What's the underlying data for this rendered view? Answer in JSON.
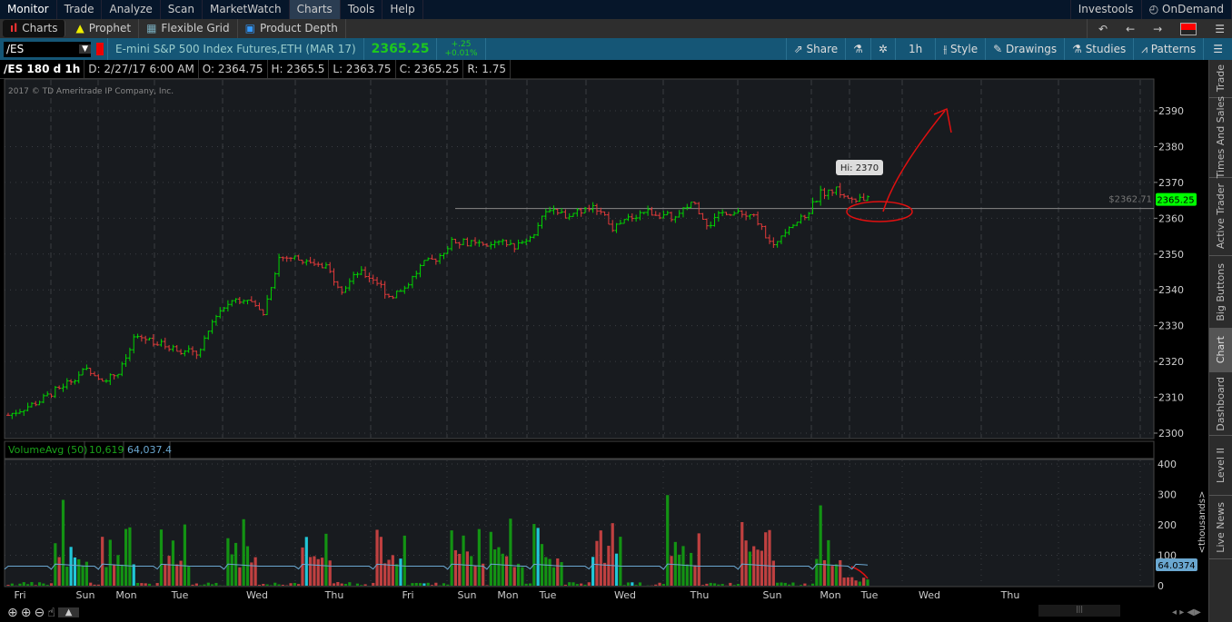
{
  "menu": {
    "items": [
      "Monitor",
      "Trade",
      "Analyze",
      "Scan",
      "MarketWatch",
      "Charts",
      "Tools",
      "Help"
    ],
    "selected": "Charts",
    "right": [
      "Investools",
      "OnDemand"
    ]
  },
  "subtabs": {
    "items": [
      "Charts",
      "Prophet",
      "Flexible Grid",
      "Product Depth"
    ],
    "selected": "Charts"
  },
  "symbol": {
    "value": "/ES",
    "description": "E-mini S&P 500 Index Futures,ETH (MAR 17)",
    "last": "2365.25",
    "change": "+.25",
    "change_pct": "+0.01%"
  },
  "toolbar": {
    "share": "Share",
    "timeframe": "1h",
    "style": "Style",
    "drawings": "Drawings",
    "studies": "Studies",
    "patterns": "Patterns"
  },
  "info": {
    "period": "/ES 180 d 1h",
    "date": "D: 2/27/17 6:00 AM",
    "open": "O: 2364.75",
    "high": "H: 2365.5",
    "low": "L: 2363.75",
    "close": "C: 2365.25",
    "range": "R: 1.75"
  },
  "copyright": "2017 © TD Ameritrade IP Company, Inc.",
  "hi_bubble": "Hi: 2370",
  "price_line_label": "$2362.71",
  "price_line_value": 2362.71,
  "last_price_tag": "2365.25",
  "volume": {
    "label": "VolumeAvg (50)",
    "value": "10,619",
    "avg": "64,037.4",
    "avg_tag": "64.0374",
    "unit": "<thousands>",
    "axis": [
      "400",
      "300",
      "200",
      "100",
      "0"
    ]
  },
  "colors": {
    "up": "#00d400",
    "down": "#e03a3a",
    "avg": "#6aa7d0",
    "accent": "#155676",
    "last": "#00ff00",
    "annotation": "#e01010"
  },
  "chart_data": {
    "type": "candlestick",
    "yaxis_ticks": [
      2390,
      2380,
      2370,
      2360,
      2350,
      2340,
      2330,
      2320,
      2310,
      2300
    ],
    "ylim": [
      2299,
      2398
    ],
    "x_ticks": [
      "Fri",
      "Sun",
      "Mon",
      "Tue",
      "Wed",
      "Thu",
      "Fri",
      "Sun",
      "Mon",
      "Tue",
      "Wed",
      "Thu"
    ],
    "close_path": [
      2305,
      2307,
      2309,
      2312,
      2315,
      2318,
      2315,
      2317,
      2327,
      2326,
      2324,
      2323,
      2322,
      2333,
      2337,
      2338,
      2333,
      2349,
      2349,
      2347,
      2346,
      2340,
      2345,
      2343,
      2338,
      2341,
      2347,
      2349,
      2354,
      2353,
      2352,
      2353,
      2352,
      2356,
      2363,
      2361,
      2362,
      2363,
      2357,
      2360,
      2362,
      2361,
      2360,
      2365,
      2358,
      2362,
      2361,
      2360,
      2352,
      2358,
      2360,
      2367,
      2368,
      2365,
      2365.25
    ],
    "volume_avg_thousands": 64.04
  },
  "tabs": [
    "Trade",
    "Times And Sales",
    "Active Trader",
    "Big Buttons",
    "Chart",
    "Dashboard",
    "Level II",
    "Live News"
  ],
  "selected_tab": "Chart"
}
